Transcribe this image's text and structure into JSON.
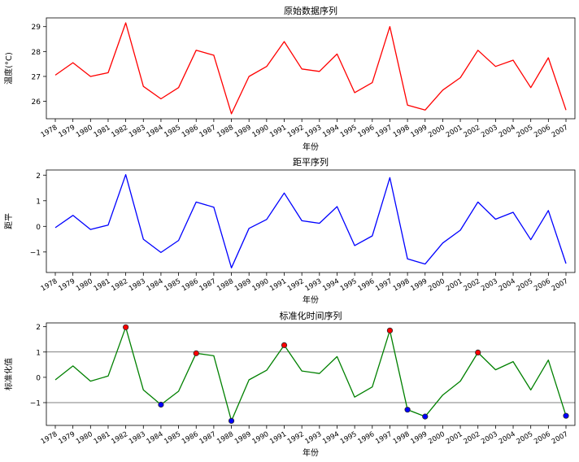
{
  "chart_data": [
    {
      "type": "line",
      "title": "原始数据序列",
      "xlabel": "年份",
      "ylabel": "温度(°C)",
      "x": [
        "1978",
        "1979",
        "1980",
        "1981",
        "1982",
        "1983",
        "1984",
        "1985",
        "1986",
        "1987",
        "1988",
        "1989",
        "1990",
        "1991",
        "1992",
        "1993",
        "1994",
        "1995",
        "1996",
        "1997",
        "1998",
        "1999",
        "2000",
        "2001",
        "2002",
        "2003",
        "2004",
        "2005",
        "2006",
        "2007"
      ],
      "series": [
        {
          "color": "#ff0000",
          "values": [
            27.05,
            27.55,
            27.0,
            27.15,
            29.15,
            26.6,
            26.1,
            26.55,
            28.05,
            27.85,
            25.5,
            27.0,
            27.4,
            28.4,
            27.3,
            27.2,
            27.9,
            26.35,
            26.75,
            29.0,
            25.85,
            25.65,
            26.45,
            26.95,
            28.05,
            27.4,
            27.65,
            26.55,
            27.75,
            25.65
          ]
        }
      ],
      "ylim": [
        25.3,
        29.35
      ],
      "yticks": [
        26,
        27,
        28,
        29
      ],
      "grid": false
    },
    {
      "type": "line",
      "title": "距平序列",
      "xlabel": "年份",
      "ylabel": "距平",
      "x": [
        "1978",
        "1979",
        "1980",
        "1981",
        "1982",
        "1983",
        "1984",
        "1985",
        "1986",
        "1987",
        "1988",
        "1989",
        "1990",
        "1991",
        "1992",
        "1993",
        "1994",
        "1995",
        "1996",
        "1997",
        "1998",
        "1999",
        "2000",
        "2001",
        "2002",
        "2003",
        "2004",
        "2005",
        "2006",
        "2007"
      ],
      "series": [
        {
          "color": "#0000ff",
          "values": [
            -0.05,
            0.43,
            -0.12,
            0.05,
            2.02,
            -0.5,
            -1.02,
            -0.55,
            0.95,
            0.75,
            -1.62,
            -0.08,
            0.27,
            1.3,
            0.22,
            0.12,
            0.77,
            -0.75,
            -0.37,
            1.9,
            -1.27,
            -1.47,
            -0.65,
            -0.15,
            0.95,
            0.28,
            0.55,
            -0.52,
            0.62,
            -1.45
          ]
        }
      ],
      "ylim": [
        -1.8,
        2.2
      ],
      "yticks": [
        -1,
        0,
        1,
        2
      ],
      "grid": false
    },
    {
      "type": "line",
      "title": "标准化时间序列",
      "xlabel": "年份",
      "ylabel": "标准化值",
      "x": [
        "1978",
        "1979",
        "1980",
        "1981",
        "1982",
        "1983",
        "1984",
        "1985",
        "1986",
        "1987",
        "1988",
        "1989",
        "1990",
        "1991",
        "1992",
        "1993",
        "1994",
        "1995",
        "1996",
        "1997",
        "1998",
        "1999",
        "2000",
        "2001",
        "2002",
        "2003",
        "2004",
        "2005",
        "2006",
        "2007"
      ],
      "series": [
        {
          "color": "#008000",
          "values": [
            -0.1,
            0.45,
            -0.15,
            0.05,
            1.98,
            -0.5,
            -1.08,
            -0.55,
            0.95,
            0.85,
            -1.72,
            -0.1,
            0.28,
            1.27,
            0.25,
            0.15,
            0.82,
            -0.78,
            -0.38,
            1.85,
            -1.28,
            -1.55,
            -0.7,
            -0.15,
            0.98,
            0.3,
            0.62,
            -0.5,
            0.68,
            -1.52
          ]
        }
      ],
      "markers": {
        "high": {
          "color": "#ff0000",
          "x": [
            "1982",
            "1986",
            "1991",
            "1997",
            "2002"
          ],
          "values": [
            1.98,
            0.95,
            1.27,
            1.85,
            0.98
          ]
        },
        "low": {
          "color": "#0000ff",
          "x": [
            "1984",
            "1988",
            "1998",
            "1999",
            "2007"
          ],
          "values": [
            -1.08,
            -1.72,
            -1.28,
            -1.55,
            -1.52
          ]
        }
      },
      "hlines": [
        1,
        -1
      ],
      "ylim": [
        -1.9,
        2.15
      ],
      "yticks": [
        -1,
        0,
        1,
        2
      ],
      "grid": false
    }
  ]
}
